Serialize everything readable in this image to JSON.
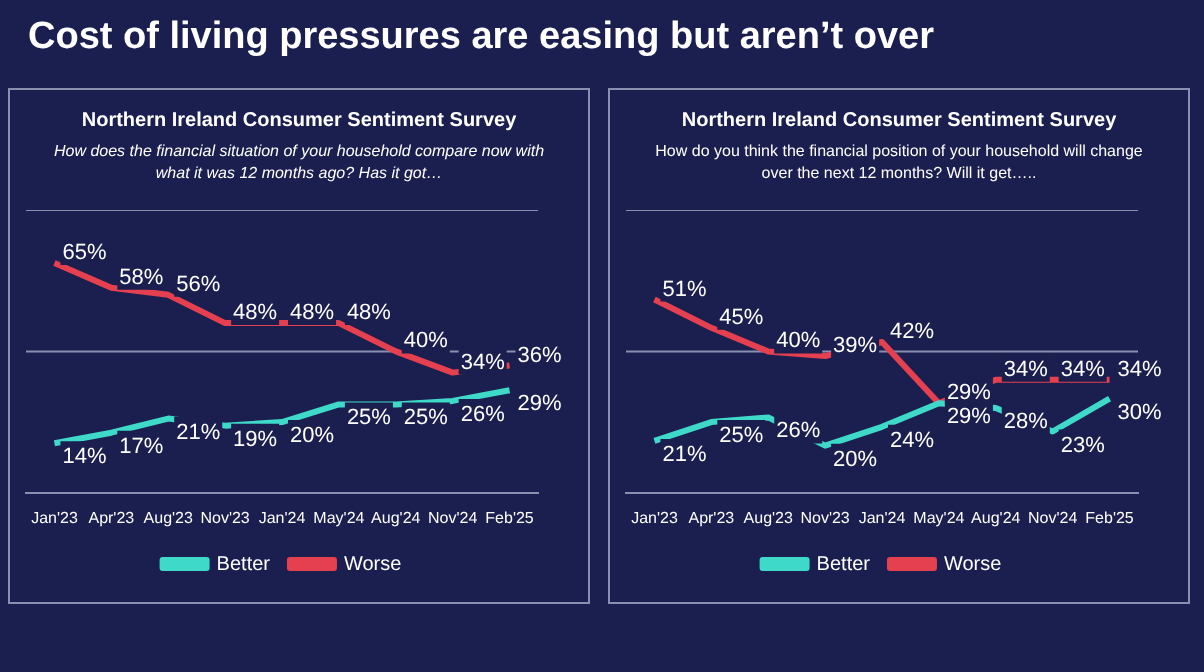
{
  "chart_data": [
    {
      "type": "line",
      "annotations": [
        "Cost of living pressures are easing but aren’t over"
      ],
      "title": "Northern Ireland Consumer Sentiment Survey",
      "subtitle": "How does the financial situation of your household compare now with what it was 12 months ago? Has it got…",
      "categories": [
        "Jan'23",
        "Apr'23",
        "Aug'23",
        "Nov'23",
        "Jan'24",
        "May'24",
        "Aug'24",
        "Nov'24",
        "Feb'25"
      ],
      "series": [
        {
          "name": "Better",
          "color": "#3fd9c9",
          "values": [
            14,
            17,
            21,
            19,
            20,
            25,
            25,
            26,
            29
          ],
          "value_labels": [
            "14%",
            "17%",
            "21%",
            "19%",
            "20%",
            "25%",
            "25%",
            "26%",
            "29%"
          ]
        },
        {
          "name": "Worse",
          "color": "#e5404f",
          "values": [
            65,
            58,
            56,
            48,
            48,
            48,
            40,
            34,
            36
          ],
          "value_labels": [
            "65%",
            "58%",
            "56%",
            "48%",
            "48%",
            "48%",
            "40%",
            "34%",
            "36%"
          ]
        }
      ],
      "ylim": [
        0,
        80
      ],
      "ref_lines": [
        {
          "axis": "y",
          "value": 40
        },
        {
          "axis": "y",
          "value": 80
        }
      ],
      "tick_labels": "x",
      "legend": "bottom",
      "marker": "none",
      "line_style": "solid"
    },
    {
      "type": "line",
      "title": "Northern Ireland Consumer Sentiment Survey",
      "subtitle": "How do you think the financial position of your household will change over the next 12 months? Will it get…..",
      "categories": [
        "Jan'23",
        "Apr'23",
        "Aug'23",
        "Nov'23",
        "Jan'24",
        "May'24",
        "Aug'24",
        "Nov'24",
        "Feb'25"
      ],
      "series": [
        {
          "name": "Better",
          "color": "#3fd9c9",
          "values": [
            21,
            25,
            26,
            20,
            24,
            29,
            28,
            23,
            30
          ],
          "value_labels": [
            "21%",
            "25%",
            "26%",
            "20%",
            "24%",
            "29%",
            "28%",
            "23%",
            "30%"
          ]
        },
        {
          "name": "Worse",
          "color": "#e5404f",
          "values": [
            51,
            45,
            40,
            39,
            42,
            29,
            34,
            34,
            34
          ],
          "value_labels": [
            "51%",
            "45%",
            "40%",
            "39%",
            "42%",
            "29%",
            "34%",
            "34%",
            "34%"
          ]
        }
      ],
      "ylim": [
        10,
        70
      ],
      "ref_lines": [
        {
          "axis": "y",
          "value": 40
        },
        {
          "axis": "y",
          "value": 70
        }
      ],
      "tick_labels": "x",
      "legend": "bottom",
      "marker": "none",
      "line_style": "solid"
    }
  ]
}
